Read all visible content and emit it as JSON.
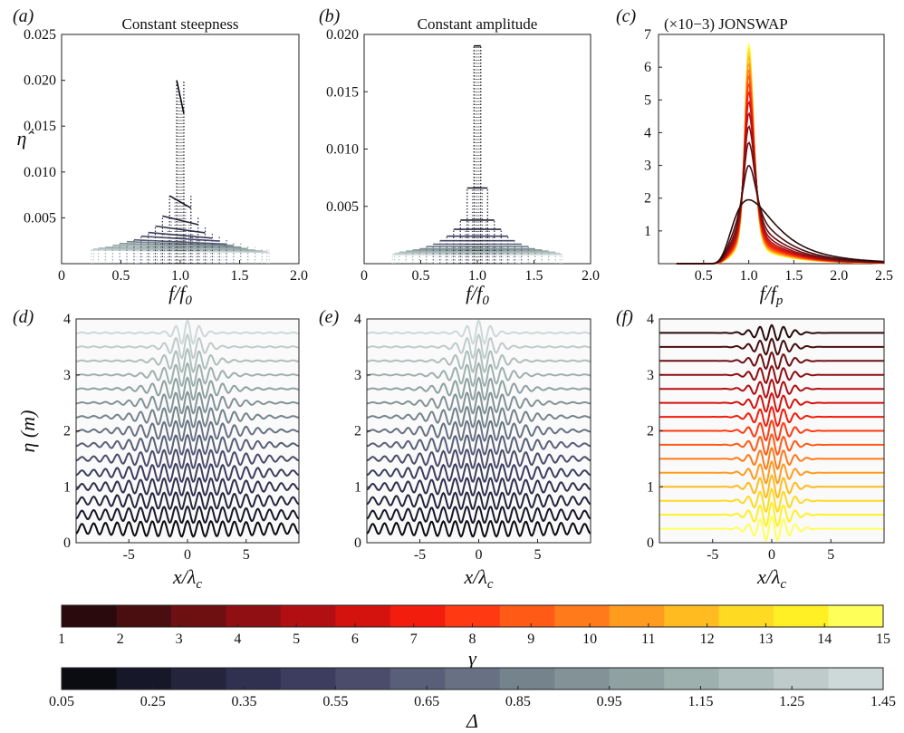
{
  "chart_data": [
    {
      "panel": "(a)",
      "type": "line",
      "title": "Constant steepness",
      "xlabel": "f/f0",
      "ylabel": "η̂",
      "xlim": [
        0,
        2.0
      ],
      "ylim": [
        0,
        0.025
      ],
      "xticks": [
        "0",
        "0.5",
        "1.0",
        "1.5",
        "2.0"
      ],
      "yticks": [
        "0.005",
        "0.010",
        "0.015",
        "0.020",
        "0.025"
      ],
      "colormap": "Delta",
      "spectra": [
        {
          "delta": 0.05,
          "peak": 0.02,
          "x_lo": 0.97,
          "x_hi": 1.03
        },
        {
          "delta": 0.15,
          "peak": 0.0074,
          "x_lo": 0.91,
          "x_hi": 1.09
        },
        {
          "delta": 0.25,
          "peak": 0.0052,
          "x_lo": 0.85,
          "x_hi": 1.15
        },
        {
          "delta": 0.35,
          "peak": 0.0041,
          "x_lo": 0.79,
          "x_hi": 1.21
        },
        {
          "delta": 0.45,
          "peak": 0.0034,
          "x_lo": 0.73,
          "x_hi": 1.27
        },
        {
          "delta": 0.55,
          "peak": 0.003,
          "x_lo": 0.67,
          "x_hi": 1.33
        },
        {
          "delta": 0.65,
          "peak": 0.0026,
          "x_lo": 0.61,
          "x_hi": 1.39
        },
        {
          "delta": 0.75,
          "peak": 0.0024,
          "x_lo": 0.55,
          "x_hi": 1.45
        },
        {
          "delta": 0.85,
          "peak": 0.0022,
          "x_lo": 0.49,
          "x_hi": 1.51
        },
        {
          "delta": 0.95,
          "peak": 0.002,
          "x_lo": 0.43,
          "x_hi": 1.57
        },
        {
          "delta": 1.05,
          "peak": 0.0018,
          "x_lo": 0.37,
          "x_hi": 1.63
        },
        {
          "delta": 1.15,
          "peak": 0.0017,
          "x_lo": 0.31,
          "x_hi": 1.69
        },
        {
          "delta": 1.25,
          "peak": 0.0016,
          "x_lo": 0.27,
          "x_hi": 1.73
        },
        {
          "delta": 1.35,
          "peak": 0.0015,
          "x_lo": 0.25,
          "x_hi": 1.75
        }
      ]
    },
    {
      "panel": "(b)",
      "type": "line",
      "title": "Constant amplitude",
      "xlabel": "f/f0",
      "xlim": [
        0,
        2.0
      ],
      "ylim": [
        0,
        0.02
      ],
      "xticks": [
        "0",
        "0.5",
        "1.0",
        "1.5",
        "2.0"
      ],
      "yticks": [
        "0.005",
        "0.010",
        "0.015",
        "0.020"
      ],
      "colormap": "Delta",
      "spectra": [
        {
          "delta": 0.05,
          "peak": 0.019,
          "x_lo": 0.97,
          "x_hi": 1.03
        },
        {
          "delta": 0.15,
          "peak": 0.0066,
          "x_lo": 0.91,
          "x_hi": 1.09
        },
        {
          "delta": 0.25,
          "peak": 0.0038,
          "x_lo": 0.85,
          "x_hi": 1.15
        },
        {
          "delta": 0.35,
          "peak": 0.003,
          "x_lo": 0.79,
          "x_hi": 1.21
        },
        {
          "delta": 0.45,
          "peak": 0.0024,
          "x_lo": 0.73,
          "x_hi": 1.27
        },
        {
          "delta": 0.55,
          "peak": 0.002,
          "x_lo": 0.67,
          "x_hi": 1.33
        },
        {
          "delta": 0.65,
          "peak": 0.0017,
          "x_lo": 0.61,
          "x_hi": 1.39
        },
        {
          "delta": 0.75,
          "peak": 0.0015,
          "x_lo": 0.55,
          "x_hi": 1.45
        },
        {
          "delta": 0.85,
          "peak": 0.0013,
          "x_lo": 0.49,
          "x_hi": 1.51
        },
        {
          "delta": 0.95,
          "peak": 0.0012,
          "x_lo": 0.43,
          "x_hi": 1.57
        },
        {
          "delta": 1.05,
          "peak": 0.0011,
          "x_lo": 0.37,
          "x_hi": 1.63
        },
        {
          "delta": 1.15,
          "peak": 0.001,
          "x_lo": 0.31,
          "x_hi": 1.69
        },
        {
          "delta": 1.25,
          "peak": 0.0009,
          "x_lo": 0.27,
          "x_hi": 1.73
        },
        {
          "delta": 1.35,
          "peak": 0.0008,
          "x_lo": 0.25,
          "x_hi": 1.75
        }
      ]
    },
    {
      "panel": "(c)",
      "type": "line",
      "title": "JONSWAP",
      "scale_note": "(×10−3)",
      "xlabel": "f/fp",
      "xlim": [
        0,
        2.5
      ],
      "ylim": [
        0,
        7
      ],
      "xticks": [
        "0.5",
        "1.0",
        "1.5",
        "2.0",
        "2.5"
      ],
      "yticks": [
        "1",
        "2",
        "3",
        "4",
        "5",
        "6",
        "7"
      ],
      "colormap": "gamma",
      "spectra_peaks_e3": [
        {
          "gamma": 1,
          "peak": 1.95
        },
        {
          "gamma": 2,
          "peak": 3.0
        },
        {
          "gamma": 3,
          "peak": 3.7
        },
        {
          "gamma": 4,
          "peak": 4.2
        },
        {
          "gamma": 5,
          "peak": 4.6
        },
        {
          "gamma": 6,
          "peak": 4.95
        },
        {
          "gamma": 7,
          "peak": 5.25
        },
        {
          "gamma": 8,
          "peak": 5.5
        },
        {
          "gamma": 9,
          "peak": 5.75
        },
        {
          "gamma": 10,
          "peak": 5.95
        },
        {
          "gamma": 11,
          "peak": 6.15
        },
        {
          "gamma": 12,
          "peak": 6.35
        },
        {
          "gamma": 13,
          "peak": 6.5
        },
        {
          "gamma": 14,
          "peak": 6.62
        },
        {
          "gamma": 15,
          "peak": 6.75
        }
      ]
    },
    {
      "panel": "(d)",
      "type": "line",
      "xlabel": "x/λc",
      "ylabel": "η (m)",
      "xlim": [
        -9.5,
        9.5
      ],
      "ylim": [
        0,
        4
      ],
      "xticks": [
        "-5",
        "0",
        "5"
      ],
      "yticks": [
        "0",
        "1",
        "2",
        "3",
        "4"
      ],
      "colormap": "Delta",
      "group_count": 15
    },
    {
      "panel": "(e)",
      "type": "line",
      "xlabel": "x/λc",
      "xlim": [
        -9.5,
        9.5
      ],
      "ylim": [
        0,
        4
      ],
      "xticks": [
        "-5",
        "0",
        "5"
      ],
      "yticks": [
        "0",
        "1",
        "2",
        "3",
        "4"
      ],
      "colormap": "Delta",
      "group_count": 15
    },
    {
      "panel": "(f)",
      "type": "line",
      "xlabel": "x/λc",
      "xlim": [
        -9.5,
        9.5
      ],
      "ylim": [
        0,
        4
      ],
      "xticks": [
        "-5",
        "0",
        "5"
      ],
      "yticks": [
        "0",
        "1",
        "2",
        "3",
        "4"
      ],
      "colormap": "gamma",
      "group_count": 15
    }
  ],
  "panel_labels": [
    "(a)",
    "(b)",
    "(c)",
    "(d)",
    "(e)",
    "(f)"
  ],
  "colorbars": {
    "gamma": {
      "label": "γ",
      "ticks": [
        "1",
        "2",
        "3",
        "4",
        "5",
        "6",
        "7",
        "8",
        "9",
        "10",
        "11",
        "12",
        "13",
        "14",
        "15"
      ],
      "colors": [
        "#2a0a0c",
        "#4a0e10",
        "#6e0f12",
        "#8f0f12",
        "#b20f13",
        "#d4130f",
        "#f21d0c",
        "#ff3a12",
        "#ff5a16",
        "#ff7a1a",
        "#ff9b1e",
        "#ffbb20",
        "#ffda22",
        "#fff025",
        "#ffff5a"
      ]
    },
    "delta": {
      "label": "Δ",
      "ticks": [
        "0.05",
        "0.25",
        "0.35",
        "0.55",
        "0.65",
        "0.85",
        "0.95",
        "1.15",
        "1.25",
        "1.45"
      ],
      "colors": [
        "#0b0b12",
        "#17172a",
        "#24243c",
        "#303050",
        "#3c3d5f",
        "#4b4c6b",
        "#595f78",
        "#677183",
        "#74838c",
        "#829296",
        "#8fa1a1",
        "#9eb0ae",
        "#aebebc",
        "#bfcbca",
        "#cdd8d8"
      ]
    }
  }
}
